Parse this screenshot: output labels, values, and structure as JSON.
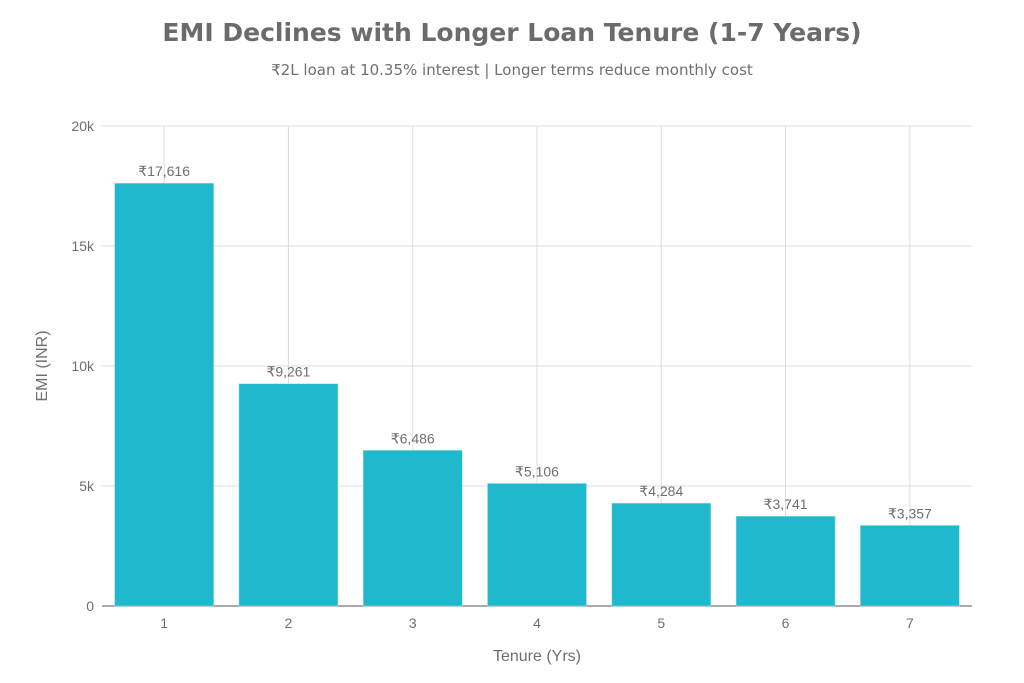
{
  "chart_data": {
    "type": "bar",
    "title": "EMI Declines with Longer Loan Tenure (1-7 Years)",
    "subtitle": "₹2L loan at 10.35% interest | Longer terms reduce monthly cost",
    "xlabel": "Tenure (Yrs)",
    "ylabel": "EMI (INR)",
    "categories": [
      "1",
      "2",
      "3",
      "4",
      "5",
      "6",
      "7"
    ],
    "values": [
      17616,
      9261,
      6486,
      5106,
      4284,
      3741,
      3357
    ],
    "data_labels": [
      "₹17,616",
      "₹9,261",
      "₹6,486",
      "₹5,106",
      "₹4,284",
      "₹3,741",
      "₹3,357"
    ],
    "ylim": [
      0,
      20000
    ],
    "yticks": [
      0,
      5000,
      10000,
      15000,
      20000
    ],
    "ytick_labels": [
      "0",
      "5k",
      "10k",
      "15k",
      "20k"
    ],
    "grid": true,
    "bar_color": "#20b8cc"
  }
}
